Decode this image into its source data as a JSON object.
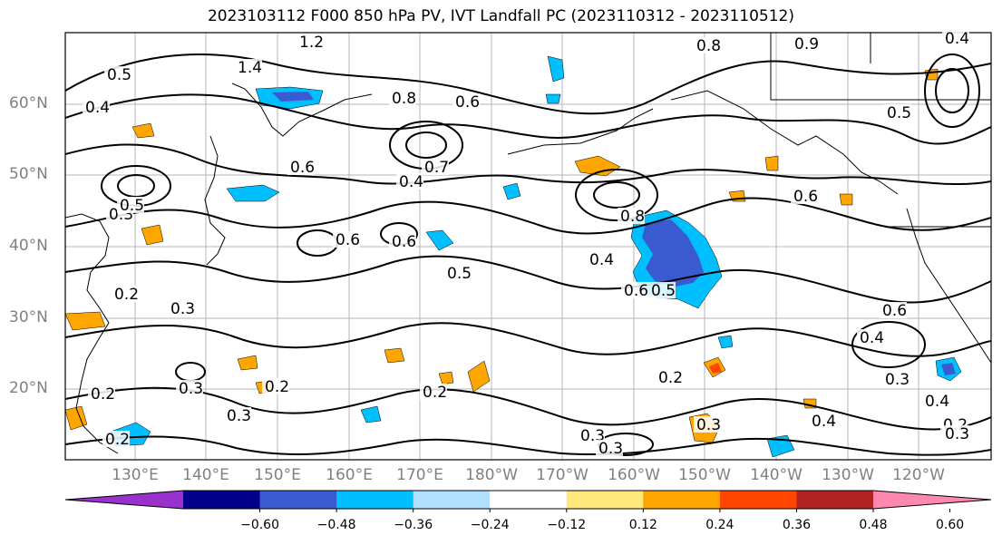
{
  "title": "2023103112 F000 850 hPa PV, IVT Landfall PC (2023110312 - 2023110512)",
  "map": {
    "lat_labels": [
      "60°N",
      "50°N",
      "40°N",
      "30°N",
      "20°N"
    ],
    "lon_labels": [
      "130°E",
      "140°E",
      "150°E",
      "160°E",
      "170°E",
      "180°W",
      "170°W",
      "160°W",
      "150°W",
      "140°W",
      "130°W",
      "120°W"
    ],
    "contour_labels": [
      "1.2",
      "1.4",
      "0.5",
      "0.4",
      "0.8",
      "0.6",
      "0.8",
      "0.9",
      "0.5",
      "0.4",
      "0.6",
      "0.7",
      "0.4",
      "0.3",
      "0.5",
      "0.6",
      "0.6",
      "0.5",
      "0.4",
      "0.8",
      "0.6",
      "0.5",
      "0.6",
      "0.6",
      "0.4",
      "0.3",
      "0.2",
      "0.3",
      "0.2",
      "0.2",
      "0.3",
      "0.2",
      "0.2",
      "0.3",
      "0.3",
      "0.4",
      "0.2",
      "0.2",
      "0.3",
      "0.4",
      "0.3",
      "0.3"
    ]
  },
  "colorbar": {
    "colors": [
      "#9932cc",
      "#00008b",
      "#3a5bcf",
      "#00bfff",
      "#b0e0ff",
      "#ffffff",
      "#ffe87c",
      "#ffa500",
      "#ff4500",
      "#b22222",
      "#ff88b0"
    ],
    "tick_labels": [
      "−0.60",
      "−0.48",
      "−0.36",
      "−0.24",
      "−0.12",
      "0.12",
      "0.24",
      "0.36",
      "0.48",
      "0.60"
    ]
  }
}
